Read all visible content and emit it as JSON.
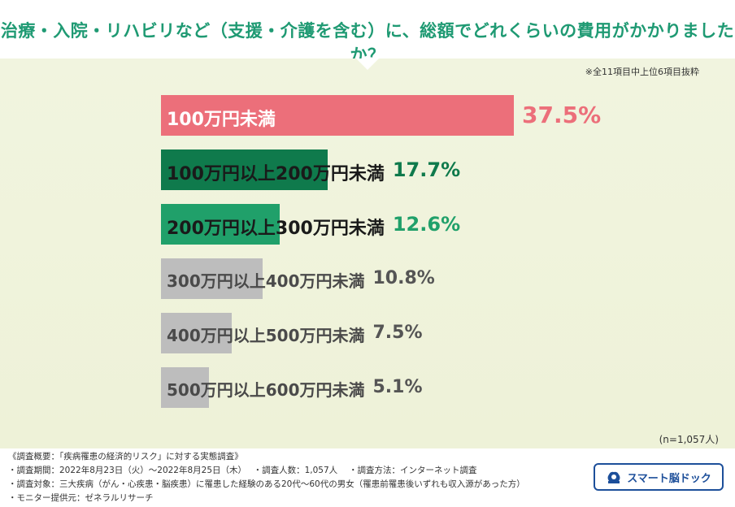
{
  "title": "治療・入院・リハビリなど（支援・介護を含む）に、総額でどれくらいの費用がかかりましたか？",
  "note": "※全11項目中上位6項目抜粋",
  "sample": "(n=1,057人)",
  "colors": {
    "top": "#ec6f7a",
    "dark_green": "#0f7a4c",
    "green": "#20a06a",
    "gray": "#bdbdbd",
    "title": "#1f9a73"
  },
  "chart_data": {
    "type": "bar",
    "orientation": "horizontal",
    "categories": [
      "100万円未満",
      "100万円以上200万円未満",
      "200万円以上300万円未満",
      "300万円以上400万円未満",
      "400万円以上500万円未満",
      "500万円以上600万円未満"
    ],
    "values": [
      37.5,
      17.7,
      12.6,
      10.8,
      7.5,
      5.1
    ],
    "value_labels": [
      "37.5%",
      "17.7%",
      "12.6%",
      "10.8%",
      "7.5%",
      "5.1%"
    ],
    "unit": "%",
    "xlim": [
      0,
      37.5
    ]
  },
  "footer": {
    "overview": "《調査概要：「疾病罹患の経済的リスク」に対する実態調査》",
    "period": "・調査期間：2022年8月23日（火）〜2022年8月25日（木）　 ・調査人数：1,057人　 ・調査方法：インターネット調査",
    "target": "・調査対象：三大疾病（がん・心疾患・脳疾患）に罹患した経験のある20代〜60代の男女（罹患前罹患後いずれも収入源があった方）",
    "provider": "・モニター提供元：ゼネラルリサーチ",
    "logo_text": "スマート脳ドック",
    "logo_icon": "brain-dock-icon"
  }
}
